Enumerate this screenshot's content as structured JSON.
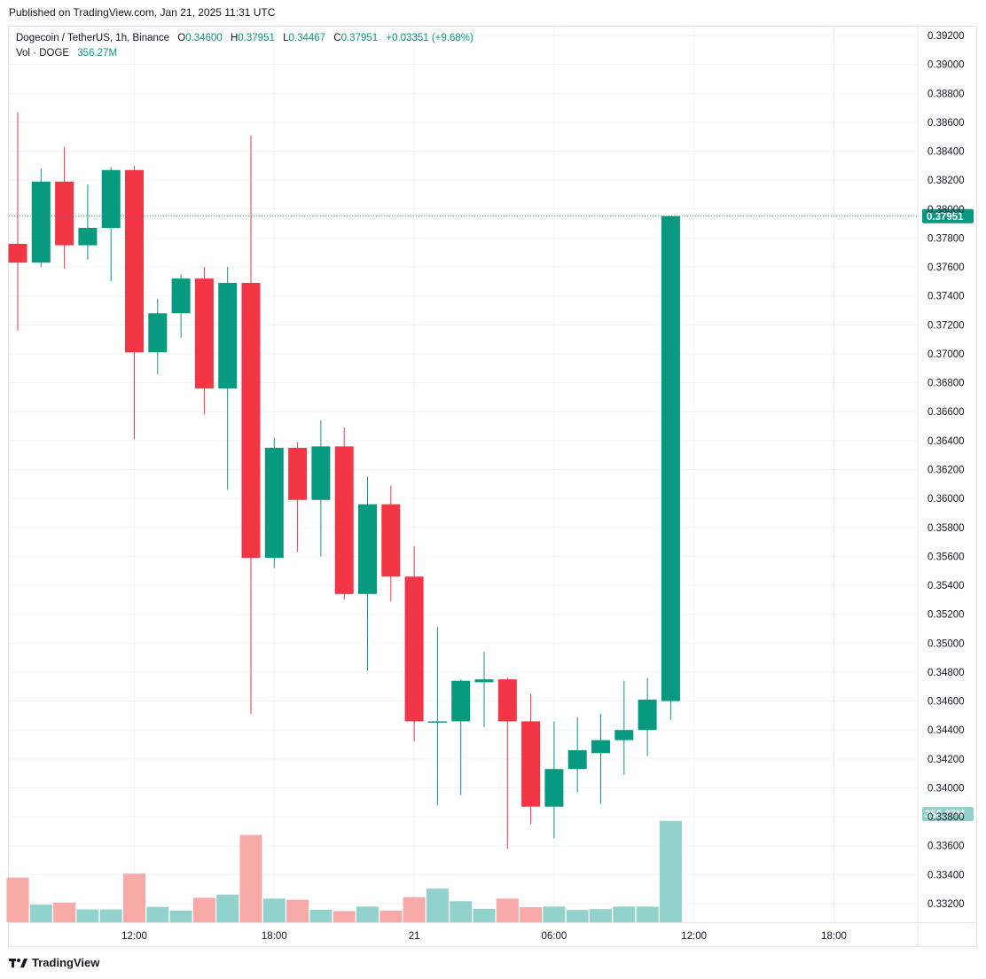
{
  "header": {
    "published": "Published on TradingView.com, Jan 21, 2025 11:31 UTC"
  },
  "legend": {
    "symbol": "Dogecoin / TetherUS, 1h, Binance",
    "o_label": "O",
    "o_value": "0.34600",
    "h_label": "H",
    "h_value": "0.37951",
    "l_label": "L",
    "l_value": "0.34467",
    "c_label": "C",
    "c_value": "0.37951",
    "change": "+0.03351 (+9.68%)",
    "vol_label": "Vol · DOGE",
    "vol_value": "356.27M"
  },
  "footer": {
    "brand": "TradingView"
  },
  "colors": {
    "up": "#089981",
    "down": "#f23645",
    "vol_up": "#92d2cc",
    "vol_down": "#f7a9a7",
    "grid": "#f0f3fa",
    "axis_text": "#131722"
  },
  "chart_data": {
    "type": "candlestick",
    "title": "Dogecoin / TetherUS, 1h, Binance",
    "y_ticks": [
      "0.39200",
      "0.39000",
      "0.38800",
      "0.38600",
      "0.38400",
      "0.38200",
      "0.38000",
      "0.37800",
      "0.37600",
      "0.37400",
      "0.37200",
      "0.37000",
      "0.36800",
      "0.36600",
      "0.36400",
      "0.36200",
      "0.36000",
      "0.35800",
      "0.35600",
      "0.35400",
      "0.35200",
      "0.35000",
      "0.34800",
      "0.34600",
      "0.34400",
      "0.34200",
      "0.34000",
      "0.33800",
      "0.33600",
      "0.33400",
      "0.33200"
    ],
    "x_ticks": [
      {
        "label": "12:00",
        "index": 5
      },
      {
        "label": "18:00",
        "index": 11
      },
      {
        "label": "21",
        "index": 17
      },
      {
        "label": "06:00",
        "index": 23
      },
      {
        "label": "12:00",
        "index": 29
      },
      {
        "label": "18:00",
        "index": 35
      }
    ],
    "last_price_label": "0.37951",
    "last_volume_label": "356.27M",
    "candles": [
      {
        "o": 0.3776,
        "h": 0.3867,
        "l": 0.3716,
        "c": 0.3763
      },
      {
        "o": 0.3763,
        "h": 0.3828,
        "l": 0.376,
        "c": 0.3819
      },
      {
        "o": 0.3819,
        "h": 0.3843,
        "l": 0.3759,
        "c": 0.3775
      },
      {
        "o": 0.3775,
        "h": 0.3817,
        "l": 0.3765,
        "c": 0.3787
      },
      {
        "o": 0.3787,
        "h": 0.3829,
        "l": 0.375,
        "c": 0.3827
      },
      {
        "o": 0.3827,
        "h": 0.383,
        "l": 0.3641,
        "c": 0.3701
      },
      {
        "o": 0.3701,
        "h": 0.3738,
        "l": 0.3686,
        "c": 0.3728
      },
      {
        "o": 0.3728,
        "h": 0.3755,
        "l": 0.3711,
        "c": 0.3752
      },
      {
        "o": 0.3752,
        "h": 0.376,
        "l": 0.3658,
        "c": 0.3676
      },
      {
        "o": 0.3676,
        "h": 0.376,
        "l": 0.3606,
        "c": 0.3749
      },
      {
        "o": 0.3749,
        "h": 0.3851,
        "l": 0.3451,
        "c": 0.3559
      },
      {
        "o": 0.3559,
        "h": 0.3642,
        "l": 0.3552,
        "c": 0.3635
      },
      {
        "o": 0.3635,
        "h": 0.3639,
        "l": 0.3563,
        "c": 0.3599
      },
      {
        "o": 0.3599,
        "h": 0.3654,
        "l": 0.356,
        "c": 0.3636
      },
      {
        "o": 0.3636,
        "h": 0.3649,
        "l": 0.353,
        "c": 0.3534
      },
      {
        "o": 0.3534,
        "h": 0.3615,
        "l": 0.3481,
        "c": 0.3596
      },
      {
        "o": 0.3596,
        "h": 0.3609,
        "l": 0.3529,
        "c": 0.3546
      },
      {
        "o": 0.3546,
        "h": 0.3567,
        "l": 0.3432,
        "c": 0.3446
      },
      {
        "o": 0.3446,
        "h": 0.3511,
        "l": 0.3388,
        "c": 0.3446
      },
      {
        "o": 0.3446,
        "h": 0.3475,
        "l": 0.3395,
        "c": 0.3474
      },
      {
        "o": 0.3473,
        "h": 0.3494,
        "l": 0.3442,
        "c": 0.3475
      },
      {
        "o": 0.3475,
        "h": 0.3476,
        "l": 0.3358,
        "c": 0.3446
      },
      {
        "o": 0.3446,
        "h": 0.3465,
        "l": 0.3375,
        "c": 0.3387
      },
      {
        "o": 0.3387,
        "h": 0.3446,
        "l": 0.3365,
        "c": 0.3413
      },
      {
        "o": 0.3413,
        "h": 0.3449,
        "l": 0.3397,
        "c": 0.3426
      },
      {
        "o": 0.3424,
        "h": 0.3451,
        "l": 0.3389,
        "c": 0.3433
      },
      {
        "o": 0.3433,
        "h": 0.3474,
        "l": 0.3409,
        "c": 0.344
      },
      {
        "o": 0.344,
        "h": 0.3476,
        "l": 0.3422,
        "c": 0.3461
      },
      {
        "o": 0.346,
        "h": 0.37951,
        "l": 0.34467,
        "c": 0.37951
      }
    ],
    "volumes_m": [
      157,
      62,
      69,
      45,
      45,
      171,
      54,
      41,
      86,
      97,
      307,
      83,
      79,
      44,
      39,
      55,
      41,
      88,
      118,
      74,
      47,
      83,
      53,
      55,
      43,
      46,
      55,
      55,
      356.27
    ]
  }
}
